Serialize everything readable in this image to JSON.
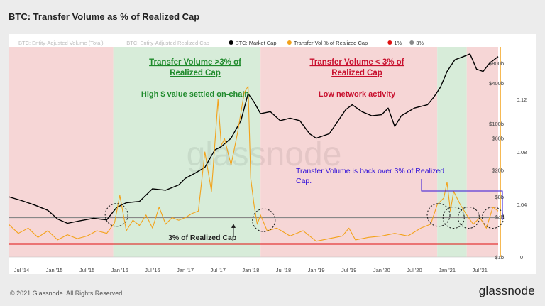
{
  "title": "BTC: Transfer Volume as % of Realized Cap",
  "footer": {
    "copyright": "© 2021 Glassnode. All Rights Reserved.",
    "logo": "glassnode"
  },
  "watermark": "glassnode",
  "colors": {
    "market_cap": "#000000",
    "transfer_vol": "#f3a21a",
    "line_1pct": "#e01010",
    "line_3pct": "#888888",
    "shade_red": "#f6d6d6",
    "shade_green": "#d7ecd9",
    "annot_green": "#1f8a2c",
    "annot_red": "#c8102e",
    "annot_blue": "#3312d8"
  },
  "legend": [
    {
      "label": "BTC: Entity-Adjusted Volume (Total)",
      "color": "#cccccc",
      "active": false
    },
    {
      "label": "BTC: Entity-Adjusted Realized Cap",
      "color": "#cccccc",
      "active": false
    },
    {
      "label": "BTC: Market Cap",
      "color": "#000000",
      "active": true
    },
    {
      "label": "Transfer Vol % of Realized Cap",
      "color": "#f3a21a",
      "active": true
    },
    {
      "label": "1%",
      "color": "#e01010",
      "active": true
    },
    {
      "label": "3%",
      "color": "#888888",
      "active": true
    }
  ],
  "annotations": {
    "green_title": "Transfer Volume >3% of Realized Cap",
    "green_sub": "High $ value settled on-chain",
    "red_title": "Transfer Volume < 3% of Realized Cap",
    "red_sub": "Low network activity",
    "blue_note": "Transfer Volume is back over 3% of Realized Cap.",
    "threshold_label": "3% of Realized Cap"
  },
  "chart_data": {
    "type": "line",
    "x_ticks": [
      "Jul '14",
      "Jan '15",
      "Jul '15",
      "Jan '16",
      "Jul '16",
      "Jan '17",
      "Jul '17",
      "Jan '18",
      "Jul '18",
      "Jan '19",
      "Jul '19",
      "Jan '20",
      "Jul '20",
      "Jan '21",
      "Jul '21"
    ],
    "x_range": [
      2014.3,
      2021.78
    ],
    "y_right_ticks": [
      "0",
      "0.04",
      "0.08",
      "0.12"
    ],
    "y_right_range": [
      0,
      0.16
    ],
    "y_log_ticks": [
      "$1b",
      "$4b",
      "$8b",
      "$20b",
      "$60b",
      "$100b",
      "$400b",
      "$800b"
    ],
    "y_log_range_usd_b": [
      1,
      1400
    ],
    "thresholds": [
      {
        "name": "1%",
        "value": 0.01
      },
      {
        "name": "3%",
        "value": 0.03
      }
    ],
    "regions": [
      {
        "type": "red",
        "from": 2014.3,
        "to": 2015.9
      },
      {
        "type": "green",
        "from": 2015.9,
        "to": 2018.15
      },
      {
        "type": "red",
        "from": 2018.15,
        "to": 2020.85
      },
      {
        "type": "green",
        "from": 2020.85,
        "to": 2021.3
      },
      {
        "type": "red",
        "from": 2021.3,
        "to": 2021.78
      }
    ],
    "series": [
      {
        "name": "BTC: Market Cap",
        "unit": "USD billions (log axis)",
        "x": [
          2014.3,
          2014.5,
          2014.7,
          2014.9,
          2015.05,
          2015.2,
          2015.4,
          2015.6,
          2015.8,
          2015.95,
          2016.1,
          2016.3,
          2016.5,
          2016.7,
          2016.9,
          2017.0,
          2017.15,
          2017.3,
          2017.45,
          2017.55,
          2017.7,
          2017.85,
          2017.96,
          2018.05,
          2018.15,
          2018.3,
          2018.45,
          2018.6,
          2018.75,
          2018.9,
          2019.0,
          2019.2,
          2019.45,
          2019.55,
          2019.7,
          2019.85,
          2020.0,
          2020.1,
          2020.2,
          2020.3,
          2020.5,
          2020.7,
          2020.8,
          2020.9,
          2021.0,
          2021.12,
          2021.25,
          2021.35,
          2021.45,
          2021.55,
          2021.65,
          2021.78
        ],
        "y": [
          8.0,
          7.0,
          6.0,
          5.0,
          3.7,
          3.2,
          3.5,
          3.8,
          3.6,
          5.5,
          6.5,
          6.8,
          10.5,
          10.0,
          12.0,
          15.0,
          18.0,
          22.0,
          40.0,
          45.0,
          60.0,
          110.0,
          280.0,
          210.0,
          140.0,
          150.0,
          110.0,
          120.0,
          110.0,
          70.0,
          60.0,
          70.0,
          160.0,
          190.0,
          150.0,
          130.0,
          135.0,
          170.0,
          90.0,
          130.0,
          170.0,
          190.0,
          250.0,
          350.0,
          600.0,
          900.0,
          1000.0,
          1100.0,
          650.0,
          600.0,
          800.0,
          1000.0
        ]
      },
      {
        "name": "Transfer Vol % of Realized Cap",
        "unit": "ratio",
        "x": [
          2014.3,
          2014.45,
          2014.6,
          2014.75,
          2014.9,
          2015.05,
          2015.2,
          2015.35,
          2015.5,
          2015.65,
          2015.8,
          2015.92,
          2016.0,
          2016.1,
          2016.2,
          2016.3,
          2016.4,
          2016.5,
          2016.6,
          2016.7,
          2016.8,
          2016.9,
          2017.0,
          2017.1,
          2017.2,
          2017.3,
          2017.4,
          2017.5,
          2017.55,
          2017.6,
          2017.7,
          2017.8,
          2017.9,
          2017.96,
          2018.0,
          2018.05,
          2018.1,
          2018.15,
          2018.25,
          2018.4,
          2018.6,
          2018.8,
          2019.0,
          2019.2,
          2019.4,
          2019.5,
          2019.6,
          2019.8,
          2020.0,
          2020.2,
          2020.4,
          2020.6,
          2020.75,
          2020.85,
          2020.95,
          2021.0,
          2021.05,
          2021.1,
          2021.2,
          2021.3,
          2021.4,
          2021.5,
          2021.6,
          2021.7,
          2021.78
        ],
        "y": [
          0.025,
          0.018,
          0.022,
          0.015,
          0.02,
          0.013,
          0.017,
          0.014,
          0.016,
          0.02,
          0.018,
          0.026,
          0.047,
          0.02,
          0.028,
          0.024,
          0.032,
          0.022,
          0.038,
          0.025,
          0.03,
          0.028,
          0.03,
          0.033,
          0.035,
          0.08,
          0.05,
          0.12,
          0.085,
          0.09,
          0.07,
          0.095,
          0.125,
          0.13,
          0.06,
          0.04,
          0.025,
          0.032,
          0.02,
          0.022,
          0.016,
          0.02,
          0.012,
          0.014,
          0.016,
          0.022,
          0.013,
          0.015,
          0.016,
          0.018,
          0.016,
          0.022,
          0.025,
          0.04,
          0.045,
          0.057,
          0.035,
          0.05,
          0.04,
          0.032,
          0.025,
          0.03,
          0.022,
          0.038,
          0.035
        ]
      }
    ]
  }
}
